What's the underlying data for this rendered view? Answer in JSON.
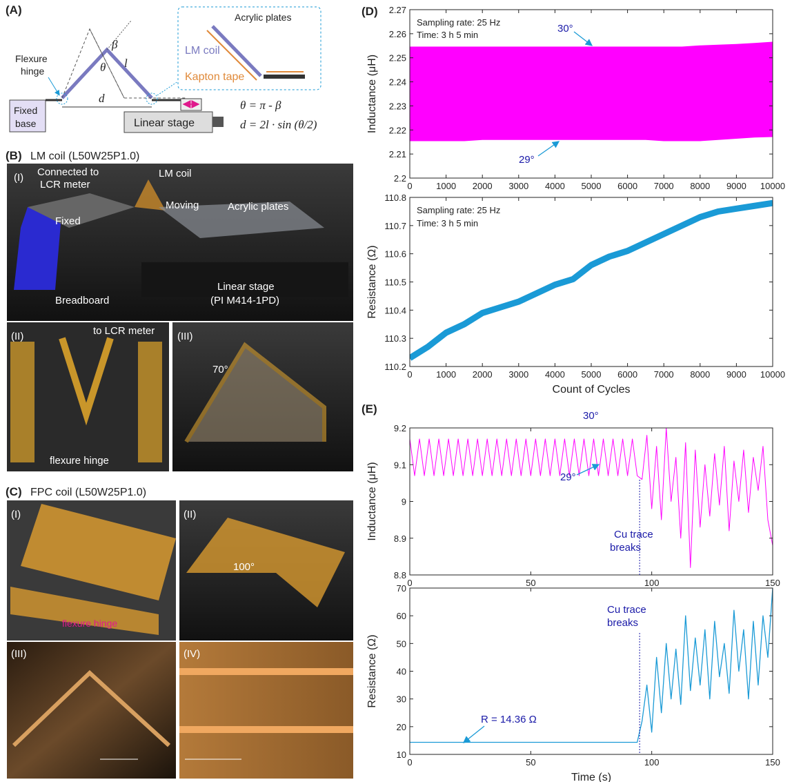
{
  "panels": {
    "A": {
      "label": "(A)",
      "flexure": [
        "Flexure",
        "hinge"
      ],
      "fixed_base": [
        "Fixed",
        "base"
      ],
      "d": "d",
      "beta": "β",
      "theta": "θ",
      "l": "l",
      "linear_stage": "Linear stage",
      "acrylic": "Acrylic plates",
      "lm_coil": "LM coil",
      "kapton": "Kapton tape",
      "eq1": "θ = π - β",
      "eq2": "d = 2l · sin (θ/2)"
    },
    "B": {
      "label": "(B)",
      "title": "LM coil (L50W25P1.0)",
      "I": {
        "label": "(I)",
        "connected": [
          "Connected to",
          "LCR meter"
        ],
        "lm_coil": "LM coil",
        "moving": "Moving",
        "acrylic": "Acrylic plates",
        "fixed": "Fixed",
        "breadboard": "Breadboard",
        "stage": [
          "Linear stage",
          "(PI M414-1PD)"
        ]
      },
      "II": {
        "label": "(II)",
        "lcr": "to LCR meter",
        "hinge": "flexure hinge"
      },
      "III": {
        "label": "(III)",
        "angle": "70°"
      }
    },
    "C": {
      "label": "(C)",
      "title": "FPC coil (L50W25P1.0)",
      "I": {
        "label": "(I)",
        "hinge": "flexure hinge"
      },
      "II": {
        "label": "(II)",
        "angle": "100°"
      },
      "III": {
        "label": "(III)"
      },
      "IV": {
        "label": "(IV)"
      }
    },
    "D": {
      "label": "(D)"
    },
    "E": {
      "label": "(E)"
    }
  },
  "chart_data": [
    {
      "type": "area",
      "ylabel": "Inductance (μH)",
      "color": "#ff00ff",
      "annotations": [
        "Sampling rate: 25 Hz",
        "Time: 3 h 5 min",
        "30°",
        "29°"
      ],
      "x": [
        0,
        500,
        1000,
        1500,
        2000,
        2500,
        3000,
        3500,
        4000,
        4500,
        5000,
        5500,
        6000,
        6500,
        7000,
        7500,
        8000,
        8500,
        9000,
        9500,
        10000
      ],
      "series": [
        {
          "values": [
            2.2545,
            2.2545,
            2.2545,
            2.2545,
            2.2545,
            2.2545,
            2.2545,
            2.2545,
            2.2545,
            2.2545,
            2.2545,
            2.2545,
            2.2545,
            2.2545,
            2.2545,
            2.2545,
            2.255,
            2.2553,
            2.2556,
            2.256,
            2.2565
          ]
        },
        {
          "values": [
            2.2155,
            2.2155,
            2.2155,
            2.2155,
            2.216,
            2.216,
            2.216,
            2.216,
            2.216,
            2.216,
            2.216,
            2.216,
            2.216,
            2.216,
            2.2155,
            2.2155,
            2.2155,
            2.216,
            2.2165,
            2.217,
            2.2172
          ]
        }
      ],
      "xlim": [
        0,
        10000
      ],
      "xticks": [
        0,
        1000,
        2000,
        3000,
        4000,
        5000,
        6000,
        7000,
        8000,
        9000,
        10000
      ],
      "ylim": [
        2.2,
        2.27
      ],
      "yticks": [
        2.2,
        2.21,
        2.22,
        2.23,
        2.24,
        2.25,
        2.26,
        2.27
      ]
    },
    {
      "type": "line",
      "ylabel": "Resistance (Ω)",
      "xlabel": "Count of Cycles",
      "color": "#1a9ad6",
      "annotations": [
        "Sampling rate: 25 Hz",
        "Time: 3 h 5 min"
      ],
      "x": [
        0,
        500,
        1000,
        1500,
        2000,
        2500,
        3000,
        3500,
        4000,
        4500,
        5000,
        5500,
        6000,
        6500,
        7000,
        7500,
        8000,
        8500,
        9000,
        9500,
        10000
      ],
      "series": [
        {
          "values": [
            110.23,
            110.27,
            110.32,
            110.35,
            110.39,
            110.41,
            110.43,
            110.46,
            110.49,
            110.51,
            110.56,
            110.59,
            110.61,
            110.64,
            110.67,
            110.7,
            110.73,
            110.75,
            110.76,
            110.77,
            110.78
          ]
        }
      ],
      "xlim": [
        0,
        10000
      ],
      "xticks": [
        0,
        1000,
        2000,
        3000,
        4000,
        5000,
        6000,
        7000,
        8000,
        9000,
        10000
      ],
      "ylim": [
        110.2,
        110.8
      ],
      "yticks": [
        110.2,
        110.3,
        110.4,
        110.5,
        110.6,
        110.7,
        110.8
      ]
    },
    {
      "type": "line",
      "ylabel": "Inductance (μH)",
      "color": "#ff00ff",
      "break_time": 95,
      "annotations": [
        "30°",
        "29°",
        "Cu trace",
        "breaks"
      ],
      "x": [
        0,
        2,
        4,
        6,
        8,
        10,
        12,
        14,
        16,
        18,
        20,
        22,
        24,
        26,
        28,
        30,
        32,
        34,
        36,
        38,
        40,
        42,
        44,
        46,
        48,
        50,
        52,
        54,
        56,
        58,
        60,
        62,
        64,
        66,
        68,
        70,
        72,
        74,
        76,
        78,
        80,
        82,
        84,
        86,
        88,
        90,
        92,
        94,
        96,
        98,
        100,
        102,
        104,
        106,
        108,
        110,
        112,
        114,
        116,
        118,
        120,
        122,
        124,
        126,
        128,
        130,
        132,
        134,
        136,
        138,
        140,
        142,
        144,
        146,
        148,
        150
      ],
      "series": [
        {
          "values": [
            9.17,
            9.07,
            9.17,
            9.07,
            9.17,
            9.07,
            9.17,
            9.07,
            9.17,
            9.07,
            9.17,
            9.07,
            9.17,
            9.07,
            9.17,
            9.07,
            9.17,
            9.07,
            9.17,
            9.07,
            9.17,
            9.07,
            9.17,
            9.07,
            9.17,
            9.07,
            9.17,
            9.07,
            9.17,
            9.07,
            9.17,
            9.07,
            9.17,
            9.07,
            9.17,
            9.07,
            9.17,
            9.07,
            9.17,
            9.07,
            9.17,
            9.07,
            9.17,
            9.07,
            9.17,
            9.07,
            9.17,
            9.07,
            9.06,
            9.18,
            8.98,
            9.15,
            8.95,
            9.2,
            9.0,
            9.12,
            8.9,
            9.16,
            8.82,
            9.14,
            8.93,
            9.1,
            8.96,
            9.13,
            8.99,
            9.15,
            8.92,
            9.11,
            9.0,
            9.14,
            8.97,
            9.12,
            9.03,
            9.15,
            8.95,
            8.88
          ]
        }
      ],
      "xlim": [
        0,
        150
      ],
      "xticks": [
        0,
        50,
        100,
        150
      ],
      "ylim": [
        8.8,
        9.2
      ],
      "yticks": [
        8.8,
        8.9,
        9,
        9.1,
        9.2
      ]
    },
    {
      "type": "line",
      "ylabel": "Resistance (Ω)",
      "xlabel": "Time (s)",
      "color": "#1a9ad6",
      "break_time": 95,
      "annotations": [
        "Cu trace",
        "breaks",
        "R = 14.36 Ω"
      ],
      "x": [
        0,
        2,
        4,
        6,
        8,
        10,
        12,
        14,
        16,
        18,
        20,
        22,
        24,
        26,
        28,
        30,
        32,
        34,
        36,
        38,
        40,
        42,
        44,
        46,
        48,
        50,
        52,
        54,
        56,
        58,
        60,
        62,
        64,
        66,
        68,
        70,
        72,
        74,
        76,
        78,
        80,
        82,
        84,
        86,
        88,
        90,
        92,
        94,
        96,
        98,
        100,
        102,
        104,
        106,
        108,
        110,
        112,
        114,
        116,
        118,
        120,
        122,
        124,
        126,
        128,
        130,
        132,
        134,
        136,
        138,
        140,
        142,
        144,
        146,
        148,
        150
      ],
      "series": [
        {
          "values": [
            14.36,
            14.36,
            14.36,
            14.36,
            14.36,
            14.36,
            14.36,
            14.36,
            14.36,
            14.36,
            14.36,
            14.36,
            14.36,
            14.36,
            14.36,
            14.36,
            14.36,
            14.36,
            14.36,
            14.36,
            14.36,
            14.36,
            14.36,
            14.36,
            14.36,
            14.36,
            14.36,
            14.36,
            14.36,
            14.36,
            14.36,
            14.36,
            14.36,
            14.36,
            14.36,
            14.36,
            14.36,
            14.36,
            14.36,
            14.36,
            14.36,
            14.36,
            14.36,
            14.36,
            14.36,
            14.36,
            14.36,
            14.36,
            22,
            35,
            18,
            45,
            25,
            50,
            30,
            48,
            28,
            60,
            33,
            52,
            35,
            55,
            30,
            58,
            38,
            50,
            32,
            62,
            40,
            55,
            30,
            58,
            35,
            60,
            45,
            70
          ]
        }
      ],
      "xlim": [
        0,
        150
      ],
      "xticks": [
        0,
        50,
        100,
        150
      ],
      "ylim": [
        10,
        70
      ],
      "yticks": [
        10,
        20,
        30,
        40,
        50,
        60,
        70
      ]
    }
  ]
}
